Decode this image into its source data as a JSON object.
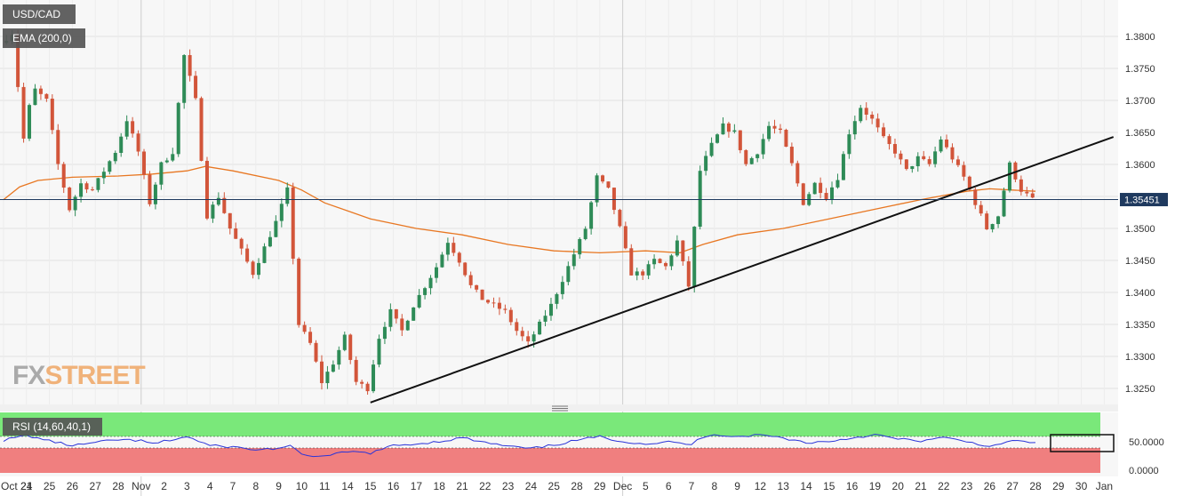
{
  "colors": {
    "up": "#2e8b57",
    "down": "#d2553a",
    "ema": "#e87722",
    "rsi": "#2b35d8",
    "trend": "#111111",
    "rsi_upper_zone": "#7ae87a",
    "rsi_lower_zone": "#f07f7f",
    "price_line": "#1f3a5f",
    "badge": "#555555"
  },
  "header": {
    "symbol": "USD/CAD",
    "ema_label": "EMA (200,0)"
  },
  "rsi_panel": {
    "label": "RSI (14,60,40,1)",
    "ticks": [
      "50.0000",
      "0.0000"
    ]
  },
  "watermark": {
    "fx": "FX",
    "street": "STREET"
  },
  "chart_data": {
    "type": "candlestick",
    "ylim": [
      1.3215,
      1.3865
    ],
    "y_ticks": [
      1.38,
      1.375,
      1.37,
      1.365,
      1.36,
      1.355,
      1.35,
      1.345,
      1.34,
      1.335,
      1.33,
      1.325
    ],
    "y_tick_labels": [
      "1.3800",
      "1.3750",
      "1.3700",
      "1.3650",
      "1.3600",
      "1.3550",
      "1.3500",
      "1.3450",
      "1.3400",
      "1.3350",
      "1.3300",
      "1.3250"
    ],
    "current_price": 1.35451,
    "current_price_label": "1.35451",
    "x_labels": [
      "Oct 21",
      "24",
      "25",
      "26",
      "27",
      "28",
      "Nov",
      "2",
      "3",
      "4",
      "7",
      "8",
      "9",
      "10",
      "11",
      "14",
      "15",
      "16",
      "17",
      "18",
      "21",
      "22",
      "23",
      "24",
      "25",
      "28",
      "29",
      "Dec",
      "5",
      "6",
      "7",
      "8",
      "9",
      "12",
      "13",
      "14",
      "15",
      "16",
      "19",
      "20",
      "21",
      "22",
      "23",
      "26",
      "27",
      "28",
      "29",
      "30",
      "Jan"
    ],
    "x_label_index": [
      0,
      1,
      2,
      3,
      4,
      5,
      6,
      7,
      8,
      9,
      10,
      11,
      12,
      13,
      14,
      15,
      16,
      17,
      18,
      19,
      20,
      21,
      22,
      23,
      24,
      25,
      26,
      27,
      28,
      29,
      30,
      31,
      32,
      33,
      34,
      35,
      36,
      37,
      38,
      39,
      40,
      41,
      42,
      43,
      44,
      45,
      46,
      47,
      48
    ],
    "close_path": [
      [
        0,
        1.379
      ],
      [
        0.5,
        1.3805
      ],
      [
        1,
        1.364
      ],
      [
        1.4,
        1.372
      ],
      [
        2,
        1.37
      ],
      [
        2.5,
        1.36
      ],
      [
        3,
        1.353
      ],
      [
        3.5,
        1.357
      ],
      [
        4,
        1.356
      ],
      [
        5,
        1.362
      ],
      [
        5.5,
        1.367
      ],
      [
        6,
        1.362
      ],
      [
        6.5,
        1.354
      ],
      [
        7,
        1.36
      ],
      [
        7.5,
        1.362
      ],
      [
        8,
        1.377
      ],
      [
        8.5,
        1.37
      ],
      [
        9,
        1.352
      ],
      [
        9.5,
        1.355
      ],
      [
        10,
        1.35
      ],
      [
        11,
        1.343
      ],
      [
        11.5,
        1.347
      ],
      [
        12,
        1.351
      ],
      [
        12.5,
        1.356
      ],
      [
        13,
        1.335
      ],
      [
        13.5,
        1.332
      ],
      [
        14,
        1.326
      ],
      [
        14.5,
        1.329
      ],
      [
        15,
        1.333
      ],
      [
        15.5,
        1.326
      ],
      [
        16,
        1.325
      ],
      [
        16.5,
        1.333
      ],
      [
        17,
        1.337
      ],
      [
        17.5,
        1.334
      ],
      [
        18,
        1.338
      ],
      [
        18.5,
        1.341
      ],
      [
        19,
        1.344
      ],
      [
        19.5,
        1.348
      ],
      [
        20,
        1.345
      ],
      [
        20.5,
        1.341
      ],
      [
        21,
        1.339
      ],
      [
        22,
        1.337
      ],
      [
        22.5,
        1.334
      ],
      [
        23,
        1.332
      ],
      [
        23.5,
        1.335
      ],
      [
        24,
        1.338
      ],
      [
        25,
        1.346
      ],
      [
        25.5,
        1.35
      ],
      [
        26,
        1.358
      ],
      [
        26.5,
        1.356
      ],
      [
        27,
        1.35
      ],
      [
        27.5,
        1.343
      ],
      [
        28,
        1.343
      ],
      [
        28.5,
        1.345
      ],
      [
        29,
        1.344
      ],
      [
        29.5,
        1.348
      ],
      [
        30,
        1.341
      ],
      [
        30.5,
        1.359
      ],
      [
        31,
        1.363
      ],
      [
        31.5,
        1.366
      ],
      [
        32,
        1.365
      ],
      [
        32.5,
        1.36
      ],
      [
        33,
        1.362
      ],
      [
        33.5,
        1.366
      ],
      [
        34,
        1.365
      ],
      [
        34.5,
        1.36
      ],
      [
        35,
        1.354
      ],
      [
        35.5,
        1.357
      ],
      [
        36,
        1.355
      ],
      [
        36.5,
        1.358
      ],
      [
        37,
        1.365
      ],
      [
        37.5,
        1.369
      ],
      [
        38,
        1.367
      ],
      [
        38.5,
        1.364
      ],
      [
        39,
        1.362
      ],
      [
        39.5,
        1.359
      ],
      [
        40,
        1.361
      ],
      [
        40.5,
        1.36
      ],
      [
        41,
        1.364
      ],
      [
        41.5,
        1.361
      ],
      [
        42,
        1.358
      ],
      [
        42.5,
        1.354
      ],
      [
        43,
        1.35
      ],
      [
        43.5,
        1.352
      ],
      [
        44,
        1.36
      ],
      [
        44.5,
        1.356
      ],
      [
        45,
        1.3545
      ]
    ],
    "ema_200": [
      [
        0,
        1.3545
      ],
      [
        0.7,
        1.3565
      ],
      [
        1.5,
        1.3575
      ],
      [
        3,
        1.358
      ],
      [
        5,
        1.3582
      ],
      [
        6.5,
        1.3585
      ],
      [
        8,
        1.359
      ],
      [
        8.8,
        1.3597
      ],
      [
        10,
        1.359
      ],
      [
        12,
        1.3575
      ],
      [
        13,
        1.356
      ],
      [
        14,
        1.354
      ],
      [
        16,
        1.3515
      ],
      [
        18,
        1.35
      ],
      [
        20,
        1.349
      ],
      [
        22,
        1.3475
      ],
      [
        24,
        1.3465
      ],
      [
        26,
        1.3462
      ],
      [
        28,
        1.3465
      ],
      [
        29.5,
        1.3462
      ],
      [
        30.5,
        1.3475
      ],
      [
        32,
        1.349
      ],
      [
        34,
        1.35
      ],
      [
        36,
        1.3515
      ],
      [
        38,
        1.353
      ],
      [
        40,
        1.3545
      ],
      [
        42,
        1.3558
      ],
      [
        43,
        1.3562
      ],
      [
        44,
        1.356
      ],
      [
        45,
        1.3558
      ]
    ],
    "trendline": [
      [
        16,
        1.3228
      ],
      [
        48.4,
        1.3643
      ]
    ],
    "rsi": [
      [
        0,
        54
      ],
      [
        1,
        62
      ],
      [
        2,
        53
      ],
      [
        3,
        45
      ],
      [
        4,
        50
      ],
      [
        5,
        55
      ],
      [
        6,
        53
      ],
      [
        6.5,
        48
      ],
      [
        7,
        52
      ],
      [
        8,
        60
      ],
      [
        9,
        45
      ],
      [
        10,
        43
      ],
      [
        11,
        38
      ],
      [
        12,
        41
      ],
      [
        12.5,
        44
      ],
      [
        13,
        30
      ],
      [
        14,
        27
      ],
      [
        15,
        35
      ],
      [
        16,
        33
      ],
      [
        17,
        45
      ],
      [
        18,
        48
      ],
      [
        19,
        52
      ],
      [
        20,
        58
      ],
      [
        21,
        50
      ],
      [
        22,
        44
      ],
      [
        23,
        40
      ],
      [
        24,
        46
      ],
      [
        25,
        54
      ],
      [
        26,
        60
      ],
      [
        27,
        52
      ],
      [
        28,
        48
      ],
      [
        29,
        51
      ],
      [
        30,
        47
      ],
      [
        30.5,
        60
      ],
      [
        31,
        64
      ],
      [
        32,
        60
      ],
      [
        33,
        63
      ],
      [
        34,
        58
      ],
      [
        35,
        50
      ],
      [
        36,
        52
      ],
      [
        37,
        58
      ],
      [
        38,
        63
      ],
      [
        39,
        56
      ],
      [
        40,
        53
      ],
      [
        41,
        58
      ],
      [
        42,
        52
      ],
      [
        43,
        44
      ],
      [
        43.5,
        46
      ],
      [
        44,
        55
      ],
      [
        44.5,
        51
      ],
      [
        45,
        49
      ]
    ],
    "rsi_range": [
      0,
      100
    ],
    "rsi_upper": 60,
    "rsi_lower": 40,
    "grid": true,
    "legend": "top-left"
  }
}
